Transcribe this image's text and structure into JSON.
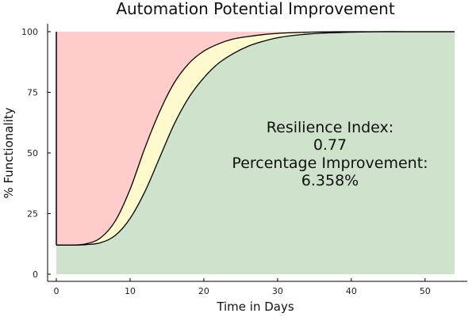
{
  "chart_data": {
    "type": "area",
    "title": "Automation Potential Improvement",
    "xlabel": "Time in Days",
    "ylabel": "% Functionality",
    "xlim": [
      0,
      54
    ],
    "ylim": [
      0,
      100
    ],
    "xticks": [
      0,
      10,
      20,
      30,
      40,
      50
    ],
    "yticks": [
      0,
      25,
      50,
      75,
      100
    ],
    "grid": false,
    "colors": {
      "loss_region": "#ffcccc",
      "improvement_region": "#fffacd",
      "recovered_region": "#cfe3cc",
      "curve": "#000000"
    },
    "series": [
      {
        "x": [
          0,
          2,
          4,
          6,
          8,
          10,
          12,
          14,
          16,
          18,
          20,
          22,
          24,
          26,
          28,
          30,
          32,
          34,
          36,
          38,
          40,
          44,
          48,
          54
        ],
        "values": [
          12,
          12,
          12.5,
          15,
          22,
          35,
          52,
          67,
          79,
          87,
          92,
          95,
          97,
          98,
          98.8,
          99.3,
          99.6,
          99.8,
          99.9,
          100,
          100,
          100,
          100,
          100
        ]
      },
      {
        "x": [
          0,
          2,
          4,
          6,
          8,
          10,
          12,
          14,
          16,
          18,
          20,
          22,
          24,
          26,
          28,
          30,
          32,
          34,
          36,
          38,
          40,
          44,
          48,
          54
        ],
        "values": [
          12,
          12,
          12.2,
          13,
          16,
          23,
          34,
          48,
          62,
          73,
          81,
          87,
          91,
          94,
          96,
          97.5,
          98.4,
          99,
          99.4,
          99.6,
          99.8,
          100,
          100,
          100
        ]
      }
    ],
    "annotations": [
      "Resilience Index:",
      "0.77",
      "Percentage Improvement:",
      "6.358%"
    ]
  }
}
